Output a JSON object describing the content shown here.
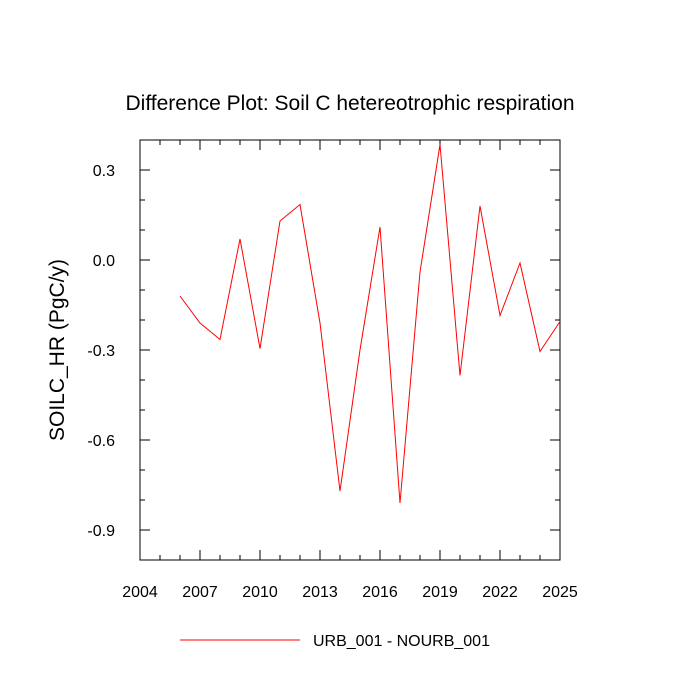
{
  "chart_data": {
    "type": "line",
    "title": "Difference Plot: Soil C hetereotrophic respiration",
    "xlabel": "",
    "ylabel": "SOILC_HR  (PgC/y)",
    "xlim": [
      2004,
      2025
    ],
    "ylim": [
      -1.0,
      0.4
    ],
    "x_ticks": [
      2004,
      2007,
      2010,
      2013,
      2016,
      2019,
      2022,
      2025
    ],
    "y_ticks": [
      -0.9,
      -0.6,
      -0.3,
      0.0,
      0.3
    ],
    "x_tick_labels": [
      "2004",
      "2007",
      "2010",
      "2013",
      "2016",
      "2019",
      "2022",
      "2025"
    ],
    "y_tick_labels": [
      "-0.9",
      "-0.6",
      "-0.3",
      "0.0",
      "0.3"
    ],
    "grid": false,
    "legend_position": "bottom",
    "series": [
      {
        "name": "URB_001 - NOURB_001",
        "color": "#ff0000",
        "x": [
          2006,
          2007,
          2008,
          2009,
          2010,
          2011,
          2012,
          2013,
          2014,
          2015,
          2016,
          2017,
          2018,
          2019,
          2020,
          2021,
          2022,
          2023,
          2024,
          2025
        ],
        "y": [
          -0.12,
          -0.21,
          -0.265,
          0.07,
          -0.295,
          0.13,
          0.185,
          -0.21,
          -0.77,
          -0.3,
          0.11,
          -0.81,
          -0.04,
          0.385,
          -0.385,
          0.18,
          -0.185,
          -0.01,
          -0.305,
          -0.205
        ]
      }
    ]
  }
}
